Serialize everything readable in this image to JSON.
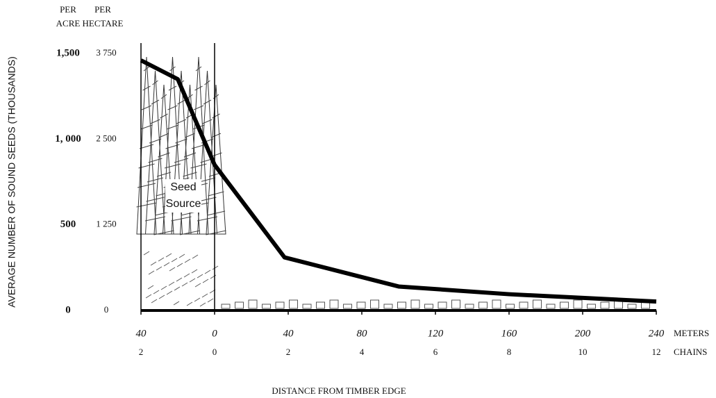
{
  "chart_data": {
    "type": "line",
    "ylabel": "AVERAGE NUMBER OF SOUND SEEDS (THOUSANDS)",
    "xlabel": "DISTANCE FROM TIMBER EDGE",
    "y_unit_label": [
      "PER",
      "ACRE"
    ],
    "y2_unit_label": [
      "PER",
      "HECTARE"
    ],
    "x_unit_label": "METERS",
    "x2_unit_label": "CHAINS",
    "annotation": [
      "Seed",
      "Source"
    ],
    "x": [
      -40,
      -20,
      0,
      38,
      100,
      160,
      240
    ],
    "series": [
      {
        "color": "#000000",
        "values": [
          1460,
          1350,
          850,
          310,
          140,
          95,
          52
        ]
      }
    ],
    "xlim": [
      -40,
      240
    ],
    "xticks": [
      {
        "value": -40,
        "label": "40"
      },
      0,
      40,
      80,
      120,
      160,
      200,
      240
    ],
    "x2ticks": [
      {
        "value": -40,
        "label": "2"
      },
      {
        "value": 0,
        "label": "0"
      },
      {
        "value": 40,
        "label": "2"
      },
      {
        "value": 80,
        "label": "4"
      },
      {
        "value": 120,
        "label": "6"
      },
      {
        "value": 160,
        "label": "8"
      },
      {
        "value": 200,
        "label": "10"
      },
      {
        "value": 240,
        "label": "12"
      }
    ],
    "ylim": [
      0,
      1500
    ],
    "yticks": [
      0,
      500,
      {
        "value": 1000,
        "label": "1, 000"
      },
      {
        "value": 1500,
        "label": "1,500"
      }
    ],
    "y2lim": [
      0,
      3750
    ],
    "y2ticks": [
      0,
      {
        "value": 1250,
        "label": "1 250"
      },
      {
        "value": 2500,
        "label": "2 500"
      },
      {
        "value": 3750,
        "label": "3 750"
      }
    ]
  }
}
